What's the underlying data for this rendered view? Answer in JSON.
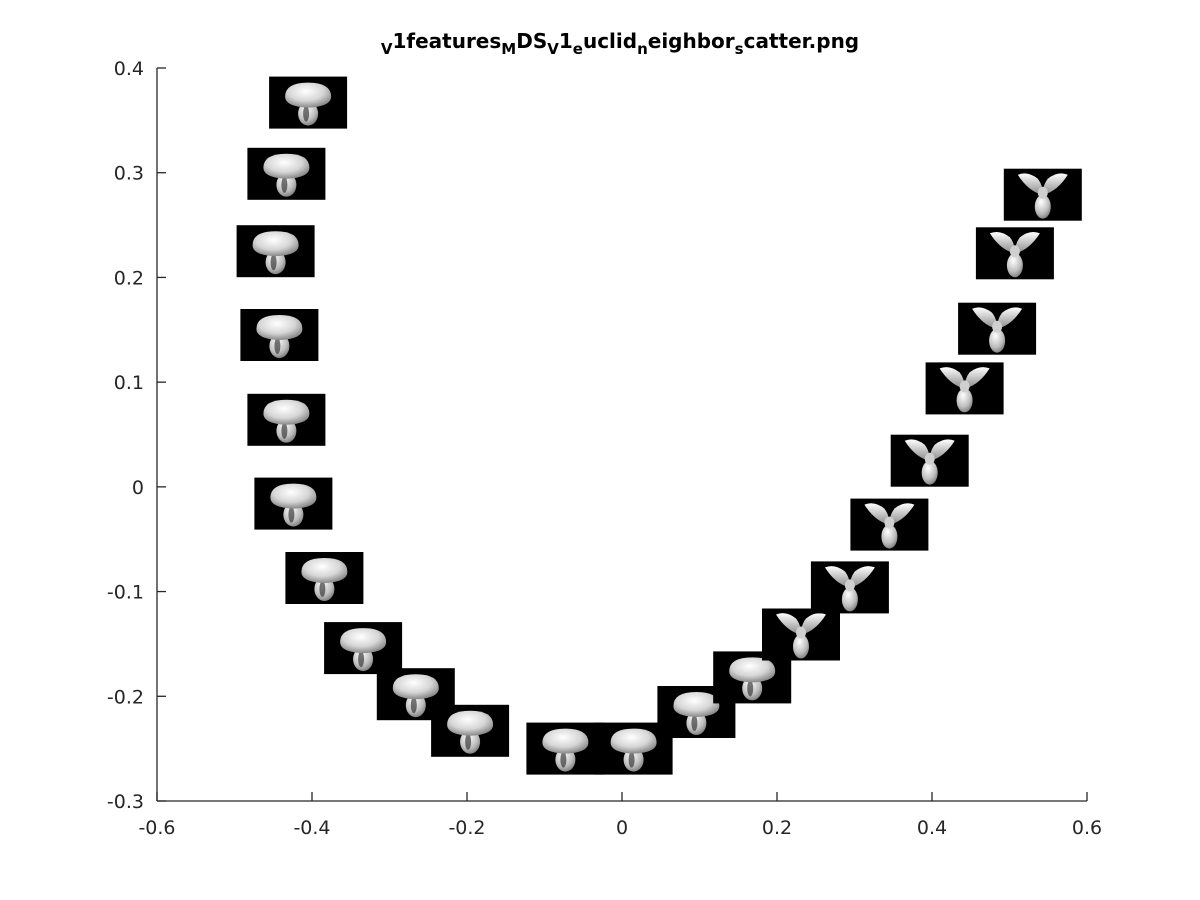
{
  "chart_data": {
    "type": "scatter",
    "title_parts": [
      {
        "text": "V",
        "sub": true
      },
      {
        "text": "1features",
        "sub": false
      },
      {
        "text": "M",
        "sub": true
      },
      {
        "text": "DS",
        "sub": false
      },
      {
        "text": "V",
        "sub": true
      },
      {
        "text": "1",
        "sub": false
      },
      {
        "text": "e",
        "sub": true
      },
      {
        "text": "uclid",
        "sub": false
      },
      {
        "text": "n",
        "sub": true
      },
      {
        "text": "eighbor",
        "sub": false
      },
      {
        "text": "s",
        "sub": true
      },
      {
        "text": "catter.png",
        "sub": false
      }
    ],
    "xlabel": "",
    "ylabel": "",
    "xlim": [
      -0.6,
      0.6
    ],
    "ylim": [
      -0.3,
      0.4
    ],
    "xticks": [
      -0.6,
      -0.4,
      -0.2,
      0,
      0.2,
      0.4,
      0.6
    ],
    "xtick_labels": [
      "-0.6",
      "-0.4",
      "-0.2",
      "0",
      "0.2",
      "0.4",
      "0.6"
    ],
    "yticks": [
      -0.3,
      -0.2,
      -0.1,
      0,
      0.1,
      0.2,
      0.3,
      0.4
    ],
    "ytick_labels": [
      "-0.3",
      "-0.2",
      "-0.1",
      "0",
      "0.1",
      "0.2",
      "0.3",
      "0.4"
    ],
    "grid": false,
    "marker": "image-thumbnail",
    "points": [
      {
        "x": -0.405,
        "y": 0.367,
        "shape": "cup"
      },
      {
        "x": -0.433,
        "y": 0.299,
        "shape": "cup"
      },
      {
        "x": -0.447,
        "y": 0.225,
        "shape": "cup"
      },
      {
        "x": -0.442,
        "y": 0.145,
        "shape": "cup"
      },
      {
        "x": -0.433,
        "y": 0.064,
        "shape": "cup"
      },
      {
        "x": -0.424,
        "y": -0.016,
        "shape": "cup"
      },
      {
        "x": -0.384,
        "y": -0.087,
        "shape": "cup"
      },
      {
        "x": -0.334,
        "y": -0.154,
        "shape": "cup"
      },
      {
        "x": -0.266,
        "y": -0.198,
        "shape": "cup"
      },
      {
        "x": -0.196,
        "y": -0.233,
        "shape": "cup"
      },
      {
        "x": -0.073,
        "y": -0.25,
        "shape": "cup"
      },
      {
        "x": 0.015,
        "y": -0.25,
        "shape": "cup"
      },
      {
        "x": 0.096,
        "y": -0.215,
        "shape": "cup"
      },
      {
        "x": 0.168,
        "y": -0.182,
        "shape": "cup"
      },
      {
        "x": 0.231,
        "y": -0.141,
        "shape": "fork"
      },
      {
        "x": 0.294,
        "y": -0.096,
        "shape": "fork"
      },
      {
        "x": 0.345,
        "y": -0.036,
        "shape": "fork"
      },
      {
        "x": 0.397,
        "y": 0.025,
        "shape": "fork"
      },
      {
        "x": 0.442,
        "y": 0.094,
        "shape": "fork"
      },
      {
        "x": 0.484,
        "y": 0.151,
        "shape": "fork"
      },
      {
        "x": 0.507,
        "y": 0.223,
        "shape": "fork"
      },
      {
        "x": 0.543,
        "y": 0.279,
        "shape": "fork"
      }
    ],
    "colors": {
      "axis": "#262626",
      "thumb_bg": "#000000",
      "thumb_fg": "#d8d8d8"
    }
  }
}
